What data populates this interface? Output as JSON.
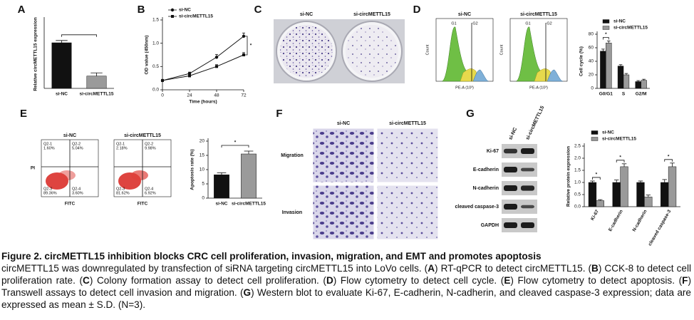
{
  "chart_data": [
    {
      "type": "bar",
      "categories": [
        "si-NC",
        "si-circMETTL15"
      ],
      "values": [
        1.0,
        0.27
      ],
      "errors": [
        0.05,
        0.07
      ],
      "colors": [
        "#111111",
        "#9a9a9a"
      ],
      "y_label": "Relative circMETTL15 expression",
      "ylim": [
        0,
        1.5
      ]
    },
    {
      "type": "line",
      "x": [
        0,
        24,
        48,
        72
      ],
      "series": [
        {
          "name": "si-NC",
          "color": "#111111",
          "marker": "circle",
          "values": [
            0.2,
            0.35,
            0.7,
            1.15
          ],
          "errors": [
            0.02,
            0.03,
            0.06,
            0.07
          ]
        },
        {
          "name": "si-circMETTL15",
          "color": "#111111",
          "marker": "square",
          "values": [
            0.2,
            0.3,
            0.5,
            0.75
          ],
          "errors": [
            0.02,
            0.03,
            0.04,
            0.05
          ]
        }
      ],
      "x_label": "Time (hours)",
      "y_label": "OD value (450nm)",
      "xlim": [
        0,
        72
      ],
      "xticks": [
        0,
        24,
        48,
        72
      ],
      "ylim": [
        0,
        1.5
      ],
      "yticks": [
        {
          "value": 0,
          "label": "0.0"
        },
        {
          "value": 0.5,
          "label": "0.5"
        },
        {
          "value": 1,
          "label": "1.0"
        },
        {
          "value": 1.5,
          "label": "1.5"
        }
      ],
      "significance": "*"
    },
    {
      "type": "bar",
      "categories": [
        "G0/G1",
        "S",
        "G2/M"
      ],
      "series": [
        {
          "name": "si-NC",
          "color": "#111111",
          "values": [
            55,
            33,
            10
          ],
          "errors": [
            3,
            2,
            1.5
          ]
        },
        {
          "name": "si-circMETTL15",
          "color": "#9a9a9a",
          "values": [
            67,
            20,
            12
          ],
          "errors": [
            3,
            2,
            1.5
          ]
        }
      ],
      "y_label": "Cell cycle (%)",
      "ylim": [
        0,
        80
      ],
      "yticks": [
        0,
        20,
        40,
        60,
        80
      ],
      "significance": [
        "*",
        null,
        null
      ]
    },
    {
      "type": "bar",
      "categories": [
        "si-NC",
        "si-circMETTL15"
      ],
      "values": [
        8.2,
        15.5
      ],
      "errors": [
        0.7,
        1.0
      ],
      "colors": [
        "#111111",
        "#9a9a9a"
      ],
      "y_label": "Apoptosis rate (%)",
      "ylim": [
        0,
        20
      ],
      "yticks": [
        0,
        5,
        10,
        15,
        20
      ],
      "significance": "*"
    },
    {
      "type": "bar",
      "categories": [
        "Ki-67",
        "E-cadherin",
        "N-cadherin",
        "cleaved caspase-3"
      ],
      "series": [
        {
          "name": "si-NC",
          "color": "#111111",
          "values": [
            1.0,
            1.0,
            1.0,
            1.0
          ],
          "errors": [
            0.06,
            0.1,
            0.06,
            0.12
          ]
        },
        {
          "name": "si-circMETTL15",
          "color": "#9a9a9a",
          "values": [
            0.25,
            1.65,
            0.4,
            1.65
          ],
          "errors": [
            0.04,
            0.12,
            0.08,
            0.15
          ]
        }
      ],
      "y_label": "Relative protein expression",
      "ylim": [
        0,
        2.5
      ],
      "yticks": [
        {
          "value": 0,
          "label": "0.0"
        },
        {
          "value": 0.5,
          "label": "0.5"
        },
        {
          "value": 1,
          "label": "1.0"
        },
        {
          "value": 1.5,
          "label": "1.5"
        },
        {
          "value": 2,
          "label": "2.0"
        },
        {
          "value": 2.5,
          "label": "2.5"
        }
      ],
      "x_label_rotation": -60,
      "significance": [
        "*",
        "*",
        null,
        "*"
      ]
    }
  ],
  "panels": {
    "A": {
      "label": "A"
    },
    "B": {
      "label": "B"
    },
    "C": {
      "label": "C",
      "titles": [
        "si-NC",
        "si-circMETTL15"
      ]
    },
    "D": {
      "label": "D",
      "titles": [
        "si-NC",
        "si-circMETTL15"
      ],
      "peaks": [
        "G1",
        "G2"
      ],
      "y_label": "Count",
      "x_label": "PE-A (10³)"
    },
    "E": {
      "label": "E",
      "titles": [
        "si-NC",
        "si-circMETTL15"
      ],
      "y_label": "PI",
      "x_label": "FITC",
      "quadrants": [
        [
          [
            "Q2-1",
            "1.60%"
          ],
          [
            "Q2-2",
            "5.04%"
          ],
          [
            "Q2-3",
            "89.36%"
          ],
          [
            "Q2-4",
            "3.60%"
          ]
        ],
        [
          [
            "Q2-1",
            "2.18%"
          ],
          [
            "Q2-2",
            "9.98%"
          ],
          [
            "Q2-3",
            "81.62%"
          ],
          [
            "Q2-4",
            "6.92%"
          ]
        ]
      ]
    },
    "F": {
      "label": "F",
      "titles": [
        "si-NC",
        "si-circMETTL15"
      ],
      "rows": [
        "Migration",
        "Invasion"
      ]
    },
    "G": {
      "label": "G",
      "lanes": [
        "si-NC",
        "si-circMETTL15"
      ],
      "proteins": [
        "Ki-67",
        "E-cadherin",
        "N-cadherin",
        "cleaved caspase-3",
        "GAPDH"
      ]
    }
  },
  "caption": {
    "title": "Figure 2. circMETTL15 inhibition blocks CRC cell proliferation, invasion, migration, and EMT and promotes apoptosis",
    "body": [
      {
        "text": "circMETTL15 was downregulated by transfection of siRNA targeting circMETTL15 into LoVo cells. ("
      },
      {
        "text": "A",
        "bold": true
      },
      {
        "text": ") RT-qPCR to detect circMETTL15. ("
      },
      {
        "text": "B",
        "bold": true
      },
      {
        "text": ") CCK-8 to detect cell proliferation rate. ("
      },
      {
        "text": "C",
        "bold": true
      },
      {
        "text": ") Colony formation assay to detect cell proliferation. ("
      },
      {
        "text": "D",
        "bold": true
      },
      {
        "text": ") Flow cytometry to detect cell cycle. ("
      },
      {
        "text": "E",
        "bold": true
      },
      {
        "text": ") Flow cytometry to detect apoptosis. ("
      },
      {
        "text": "F",
        "bold": true
      },
      {
        "text": ") Transwell assays to detect cell invasion and migration. ("
      },
      {
        "text": "G",
        "bold": true
      },
      {
        "text": ") Western blot to evaluate Ki-67, E-cadherin, N-cadherin, and cleaved caspase-3 expression; data are expressed as mean ± S.D. (N=3)."
      }
    ]
  }
}
